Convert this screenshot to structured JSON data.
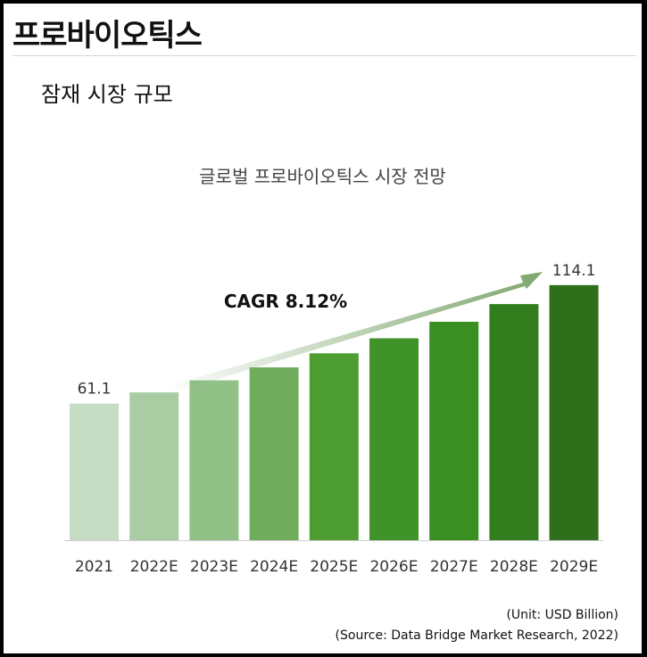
{
  "page": {
    "title": "프로바이오틱스",
    "section_title": "잠재 시장 규모",
    "unit_note": "(Unit: USD Billion)",
    "source_note": "(Source: Data Bridge Market Research, 2022)"
  },
  "chart_data": {
    "type": "bar",
    "title": "글로벌 프로바이오틱스 시장 전망",
    "xlabel": "",
    "ylabel": "",
    "categories": [
      "2021",
      "2022E",
      "2023E",
      "2024E",
      "2025E",
      "2026E",
      "2027E",
      "2028E",
      "2029E"
    ],
    "values": [
      61.1,
      66.1,
      71.5,
      77.3,
      83.6,
      90.3,
      97.7,
      105.6,
      114.1
    ],
    "data_labels": [
      "61.1",
      "",
      "",
      "",
      "",
      "",
      "",
      "",
      "114.1"
    ],
    "ylim": [
      0,
      122
    ],
    "grid": false,
    "annotation": "CAGR  8.12%",
    "colors": [
      "#c7dcc4",
      "#a9cca3",
      "#92c188",
      "#6fad5d",
      "#4d9d33",
      "#3f9328",
      "#3a8f23",
      "#327e1f",
      "#2f6f1c"
    ],
    "arrow_color": "#7fa86f"
  }
}
